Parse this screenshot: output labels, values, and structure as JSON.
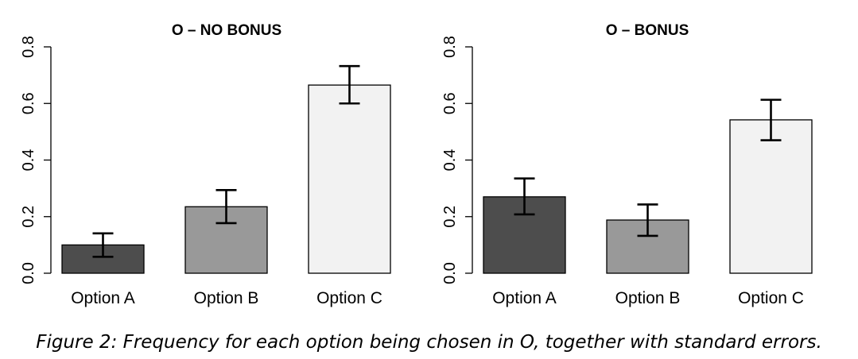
{
  "chart_data": [
    {
      "type": "bar",
      "title": "O – NO BONUS",
      "categories": [
        "Option A",
        "Option B",
        "Option C"
      ],
      "values": [
        0.1,
        0.235,
        0.665
      ],
      "error_low": [
        0.058,
        0.177,
        0.6
      ],
      "error_high": [
        0.141,
        0.294,
        0.732
      ],
      "colors": [
        "#4d4d4d",
        "#999999",
        "#f2f2f2"
      ],
      "ylim": [
        0,
        0.8
      ],
      "yticks": [
        "0.0",
        "0.2",
        "0.4",
        "0.6",
        "0.8"
      ],
      "xlabel": "",
      "ylabel": ""
    },
    {
      "type": "bar",
      "title": "O – BONUS",
      "categories": [
        "Option A",
        "Option B",
        "Option C"
      ],
      "values": [
        0.27,
        0.188,
        0.542
      ],
      "error_low": [
        0.208,
        0.132,
        0.47
      ],
      "error_high": [
        0.335,
        0.243,
        0.613
      ],
      "colors": [
        "#4d4d4d",
        "#999999",
        "#f2f2f2"
      ],
      "ylim": [
        0,
        0.8
      ],
      "yticks": [
        "0.0",
        "0.2",
        "0.4",
        "0.6",
        "0.8"
      ],
      "xlabel": "",
      "ylabel": ""
    }
  ],
  "caption": "Figure 2: Frequency for each option being chosen in O, together with standard errors."
}
